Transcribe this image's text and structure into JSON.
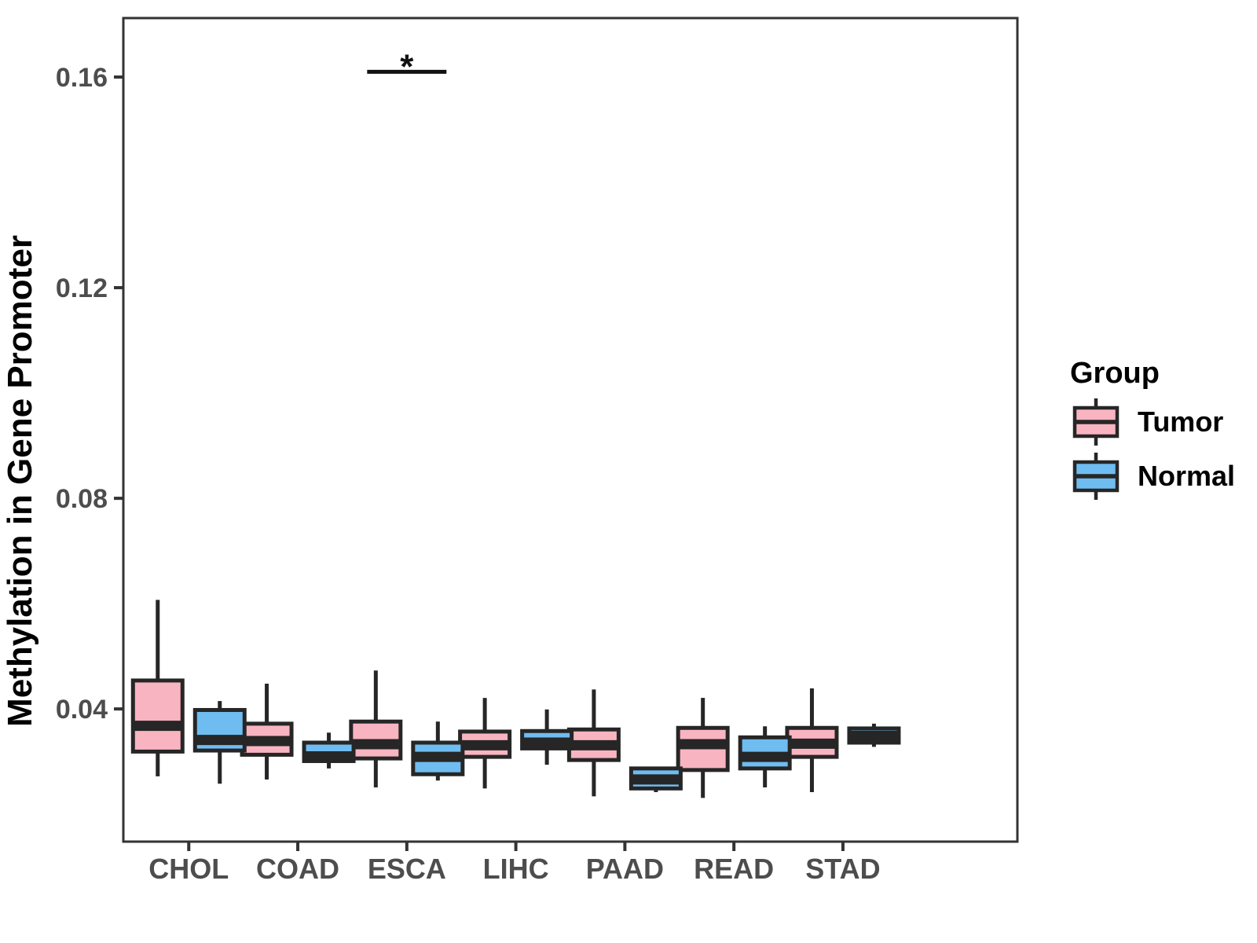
{
  "chart_data": {
    "type": "boxplot",
    "title": "",
    "xlabel": "",
    "ylabel": "Methylation in Gene Promoter",
    "categories": [
      "CHOL",
      "COAD",
      "ESCA",
      "LIHC",
      "PAAD",
      "READ",
      "STAD"
    ],
    "yticks": [
      0.04,
      0.08,
      0.12,
      0.16
    ],
    "ytick_labels": [
      "0.04",
      "0.08",
      "0.12",
      "0.16"
    ],
    "ylim": [
      0.0148,
      0.1712
    ],
    "grid": false,
    "legend": {
      "title": "Group",
      "position": "right",
      "items": [
        {
          "label": "Tumor",
          "color": "#F9B4C1"
        },
        {
          "label": "Normal",
          "color": "#6FBCF0"
        }
      ]
    },
    "colors": {
      "tumor_fill": "#F9B4C1",
      "normal_fill": "#6FBCF0",
      "box_stroke": "#262626",
      "panel_border": "#333333",
      "tick_text": "#4d4d4d",
      "annotation": "#111111"
    },
    "series": [
      {
        "name": "Tumor",
        "color": "#F9B4C1",
        "boxes": [
          {
            "category": "CHOL",
            "min": 0.0272,
            "q1": 0.0319,
            "median": 0.0368,
            "q3": 0.0454,
            "max": 0.0607
          },
          {
            "category": "COAD",
            "min": 0.0266,
            "q1": 0.0313,
            "median": 0.0339,
            "q3": 0.0372,
            "max": 0.0448
          },
          {
            "category": "ESCA",
            "min": 0.0251,
            "q1": 0.0306,
            "median": 0.0333,
            "q3": 0.0376,
            "max": 0.0473
          },
          {
            "category": "LIHC",
            "min": 0.0249,
            "q1": 0.0309,
            "median": 0.0331,
            "q3": 0.0357,
            "max": 0.0421
          },
          {
            "category": "PAAD",
            "min": 0.0234,
            "q1": 0.0303,
            "median": 0.0331,
            "q3": 0.0361,
            "max": 0.0437
          },
          {
            "category": "READ",
            "min": 0.0231,
            "q1": 0.0284,
            "median": 0.0333,
            "q3": 0.0364,
            "max": 0.0421
          },
          {
            "category": "STAD",
            "min": 0.0242,
            "q1": 0.0309,
            "median": 0.0334,
            "q3": 0.0364,
            "max": 0.0439
          }
        ]
      },
      {
        "name": "Normal",
        "color": "#6FBCF0",
        "boxes": [
          {
            "category": "CHOL",
            "min": 0.0258,
            "q1": 0.0321,
            "median": 0.0341,
            "q3": 0.0398,
            "max": 0.0415
          },
          {
            "category": "COAD",
            "min": 0.0287,
            "q1": 0.0301,
            "median": 0.031,
            "q3": 0.0336,
            "max": 0.0355
          },
          {
            "category": "ESCA",
            "min": 0.0264,
            "q1": 0.0276,
            "median": 0.0309,
            "q3": 0.0336,
            "max": 0.0376
          },
          {
            "category": "LIHC",
            "min": 0.0294,
            "q1": 0.0325,
            "median": 0.0336,
            "q3": 0.0358,
            "max": 0.0399
          },
          {
            "category": "PAAD",
            "min": 0.0242,
            "q1": 0.0249,
            "median": 0.0266,
            "q3": 0.0287,
            "max": 0.0287
          },
          {
            "category": "READ",
            "min": 0.0251,
            "q1": 0.0287,
            "median": 0.0309,
            "q3": 0.0346,
            "max": 0.0367
          },
          {
            "category": "STAD",
            "min": 0.0328,
            "q1": 0.0336,
            "median": 0.0349,
            "q3": 0.0363,
            "max": 0.0372
          }
        ]
      }
    ],
    "annotations": [
      {
        "label": "*",
        "category": "ESCA",
        "y": 0.161
      }
    ]
  }
}
